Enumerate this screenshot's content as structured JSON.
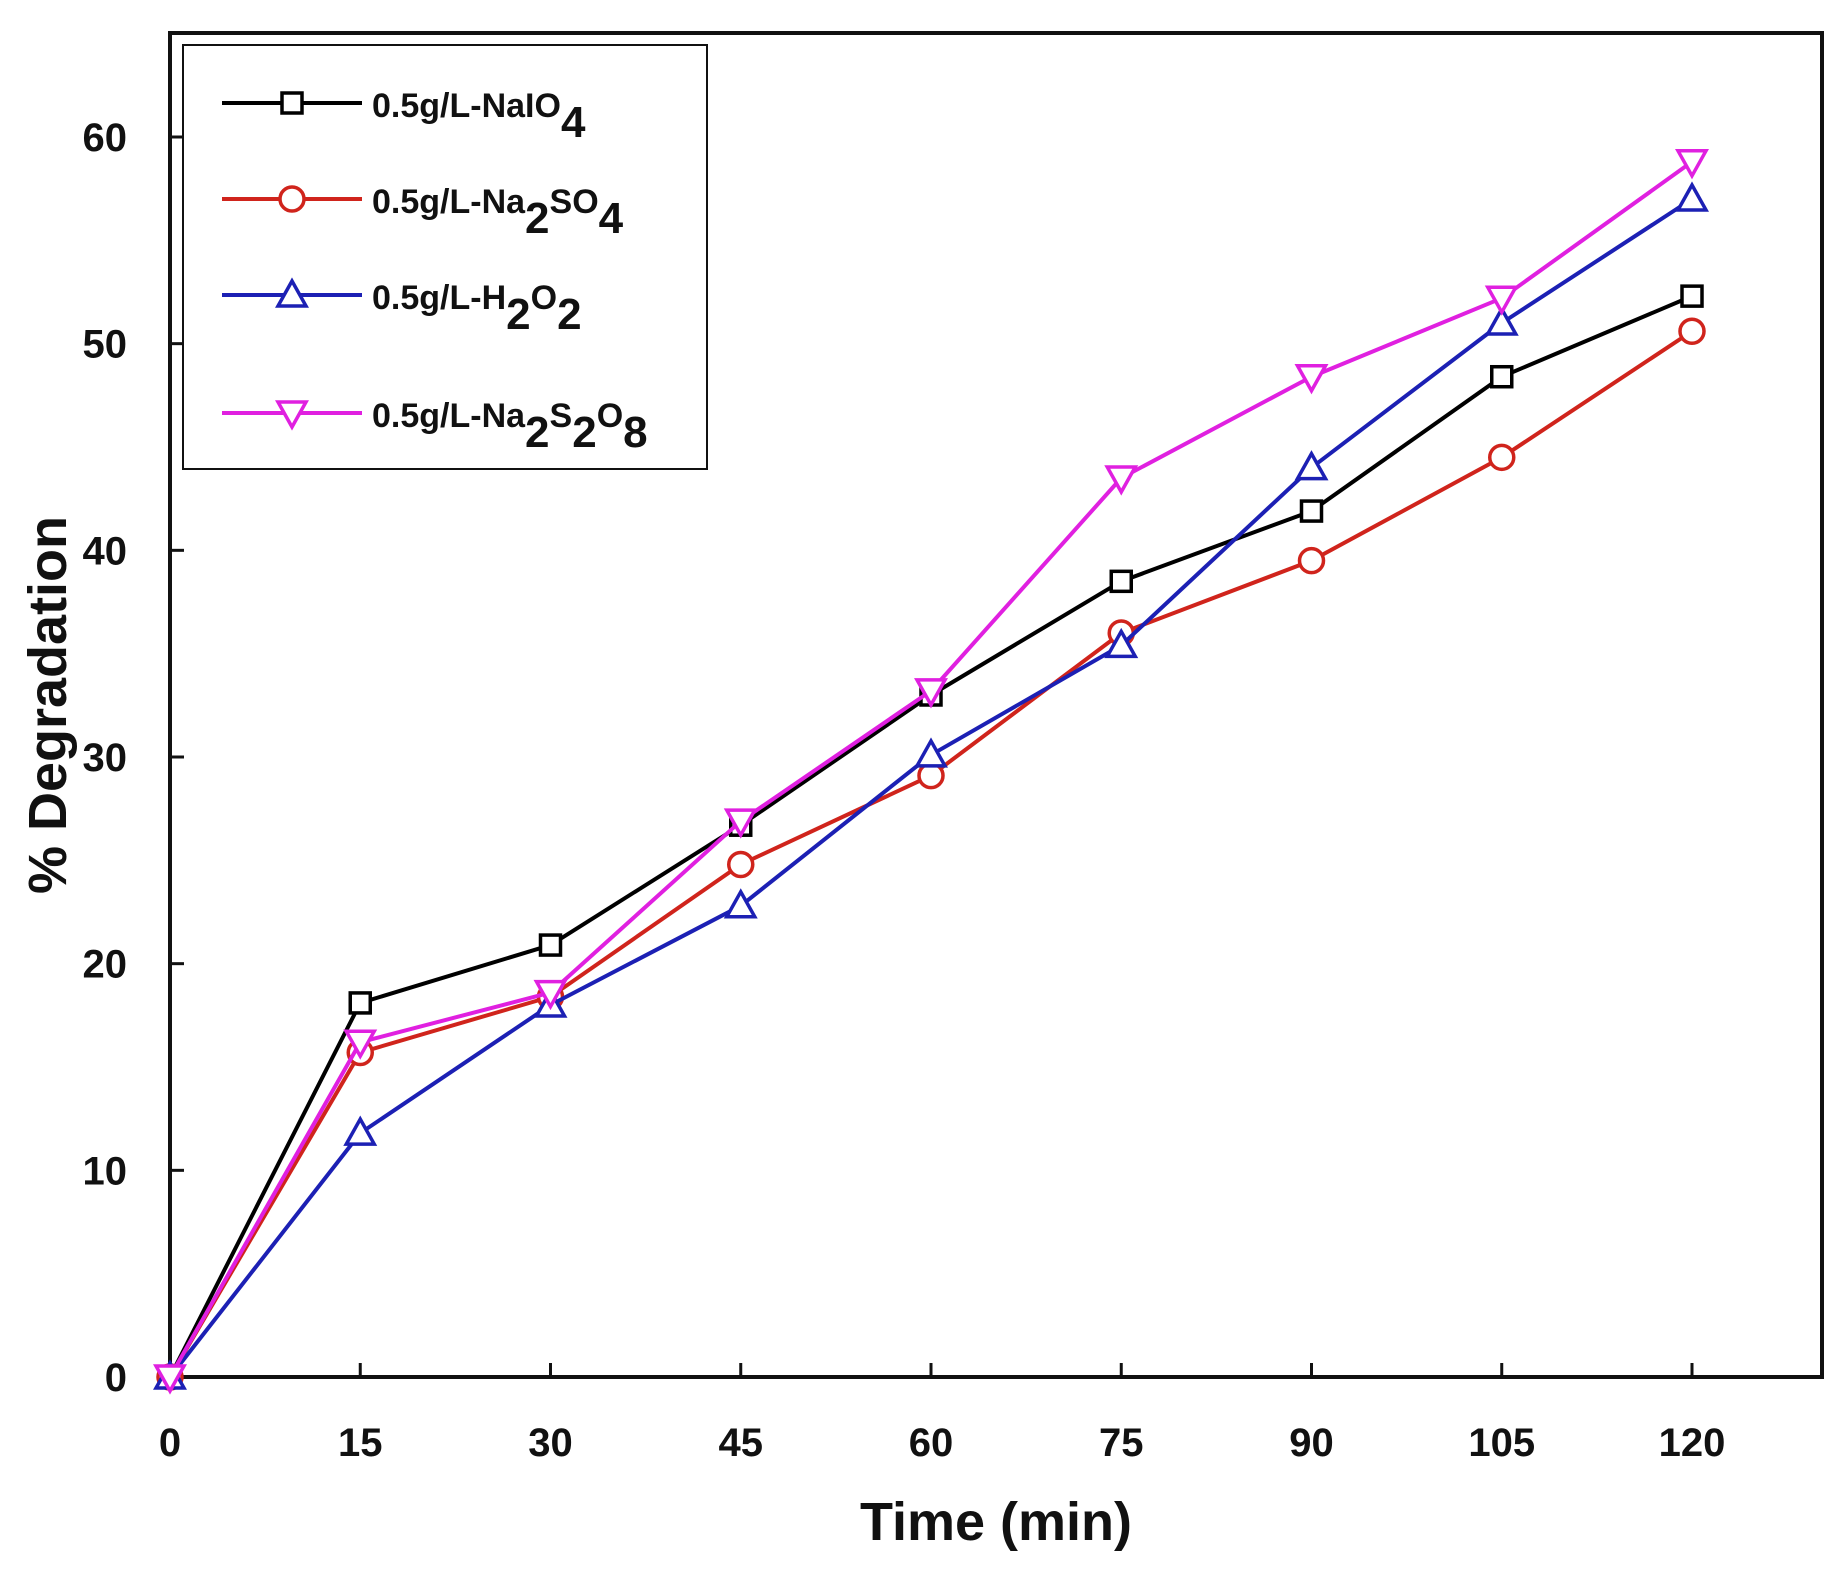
{
  "chart_data": {
    "type": "line",
    "title": "",
    "xlabel": "Time (min)",
    "ylabel": "% Degradation",
    "xlim": [
      0,
      130
    ],
    "ylim": [
      0,
      65
    ],
    "xticks": [
      0,
      15,
      30,
      45,
      60,
      75,
      90,
      105,
      120
    ],
    "yticks": [
      0,
      10,
      20,
      30,
      40,
      50,
      60
    ],
    "grid": false,
    "legend_position": "top-left",
    "x": [
      0,
      15,
      30,
      45,
      60,
      75,
      90,
      105,
      120
    ],
    "series": [
      {
        "name": "0.5g/L-NaIO4",
        "label_parts": [
          {
            "t": "0.5g/L-NaIO"
          },
          {
            "t": "4",
            "sub": true
          }
        ],
        "color": "#000000",
        "marker": "square",
        "values": [
          0,
          18.1,
          20.9,
          26.7,
          33.0,
          38.5,
          41.9,
          48.4,
          52.3
        ]
      },
      {
        "name": "0.5g/L-Na2SO4",
        "label_parts": [
          {
            "t": "0.5g/L-Na"
          },
          {
            "t": "2",
            "sub": true
          },
          {
            "t": "SO"
          },
          {
            "t": "4",
            "sub": true
          }
        ],
        "color": "#d0241c",
        "marker": "circle",
        "values": [
          0,
          15.7,
          18.4,
          24.8,
          29.1,
          36.0,
          39.5,
          44.5,
          50.6
        ]
      },
      {
        "name": "0.5g/L-H2O2",
        "label_parts": [
          {
            "t": "0.5g/L-H"
          },
          {
            "t": "2",
            "sub": true
          },
          {
            "t": "O"
          },
          {
            "t": "2",
            "sub": true
          }
        ],
        "color": "#1c20b4",
        "marker": "triangle-up",
        "values": [
          0,
          11.8,
          18.0,
          22.8,
          30.1,
          35.4,
          44.0,
          51.0,
          57.0
        ]
      },
      {
        "name": "0.5g/L-Na2S2O8",
        "label_parts": [
          {
            "t": "0.5g/L-Na"
          },
          {
            "t": "2",
            "sub": true
          },
          {
            "t": "S"
          },
          {
            "t": "2",
            "sub": true
          },
          {
            "t": "O"
          },
          {
            "t": "8",
            "sub": true
          }
        ],
        "color": "#e020e0",
        "marker": "triangle-down",
        "values": [
          0,
          16.2,
          18.6,
          26.9,
          33.2,
          43.5,
          48.4,
          52.2,
          58.8
        ]
      }
    ]
  }
}
